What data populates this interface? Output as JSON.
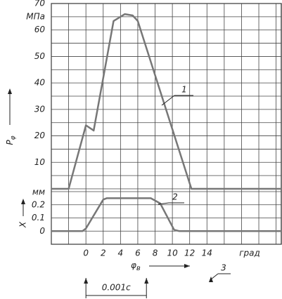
{
  "chart_data": [
    {
      "type": "line",
      "y_label": "P",
      "y_label_sub": "φ",
      "y_unit": "МПа",
      "xlim": [
        -4,
        22.6
      ],
      "ylim": [
        0,
        70
      ],
      "yticks": [
        10,
        20,
        30,
        40,
        50,
        60,
        70
      ],
      "ygrid": [
        0,
        5,
        10,
        15,
        20,
        25,
        30,
        35,
        40,
        45,
        50,
        55,
        60,
        65,
        70
      ],
      "series": [
        {
          "name": "1",
          "color": "#777777",
          "x": [
            -4,
            -2,
            0,
            0.9,
            3.2,
            4.5,
            5.4,
            6,
            12.2,
            22.6
          ],
          "values": [
            0,
            0,
            24,
            22,
            63.4,
            66,
            65.5,
            63.4,
            0,
            0
          ]
        }
      ]
    },
    {
      "type": "line",
      "y_label": "X",
      "y_unit": "мм",
      "xlim": [
        -4,
        22.6
      ],
      "ylim": [
        -0.1,
        0.3
      ],
      "yticks": [
        0,
        0.1,
        0.2
      ],
      "ygrid": [
        -0.1,
        0,
        0.1,
        0.2,
        0.3
      ],
      "xticks": [
        0,
        2,
        4,
        6,
        8,
        10,
        12,
        14
      ],
      "xgrid": [
        -4,
        -2,
        0,
        2,
        4,
        6,
        8,
        10,
        12,
        14,
        16,
        18,
        20,
        22
      ],
      "x_label": "φ",
      "x_label_sub": "в",
      "x_unit": "град",
      "series": [
        {
          "name": "2",
          "color": "#777777",
          "x": [
            -4,
            -0.4,
            0,
            2,
            2.4,
            7.5,
            8.6,
            10.2,
            10.8,
            22.6
          ],
          "values": [
            0,
            0,
            0.02,
            0.24,
            0.25,
            0.25,
            0.21,
            0.01,
            0,
            0
          ]
        }
      ],
      "dimension": {
        "label": "0.001c",
        "from": 0,
        "to": 7
      },
      "note": "3"
    }
  ]
}
